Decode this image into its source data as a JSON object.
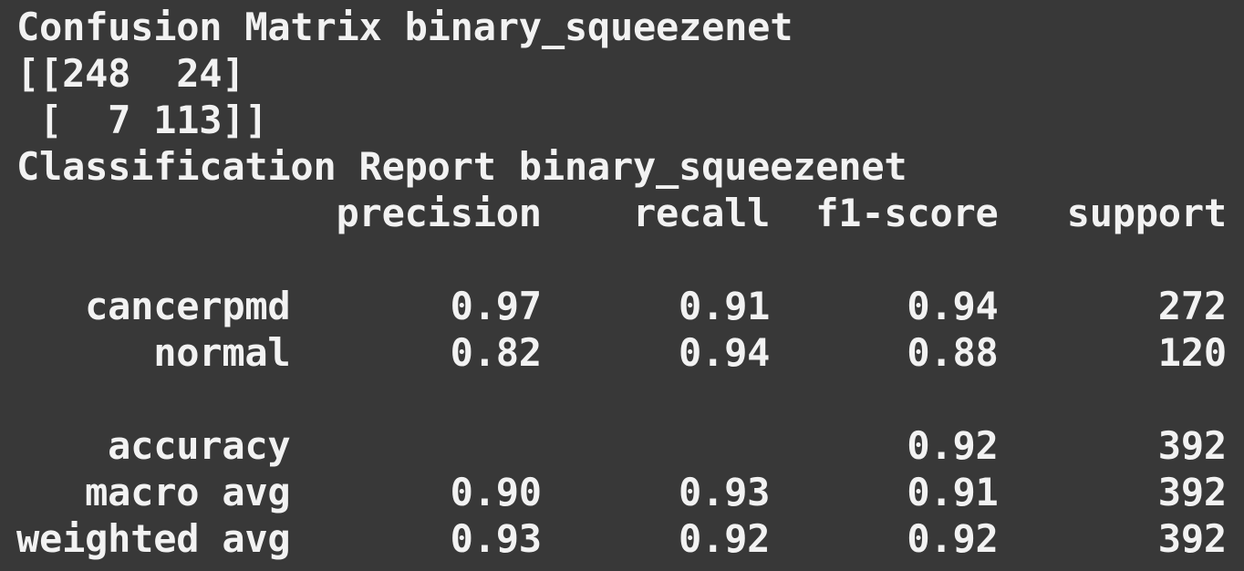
{
  "terminal": {
    "lines": [
      "Confusion Matrix binary_squeezenet",
      "[[248  24]",
      " [  7 113]]",
      "Classification Report binary_squeezenet",
      "              precision    recall  f1-score   support",
      "",
      "   cancerpmd       0.97      0.91      0.94       272",
      "      normal       0.82      0.94      0.88       120",
      "",
      "    accuracy                           0.92       392",
      "   macro avg       0.90      0.93      0.91       392",
      "weighted avg       0.93      0.92      0.92       392"
    ]
  }
}
